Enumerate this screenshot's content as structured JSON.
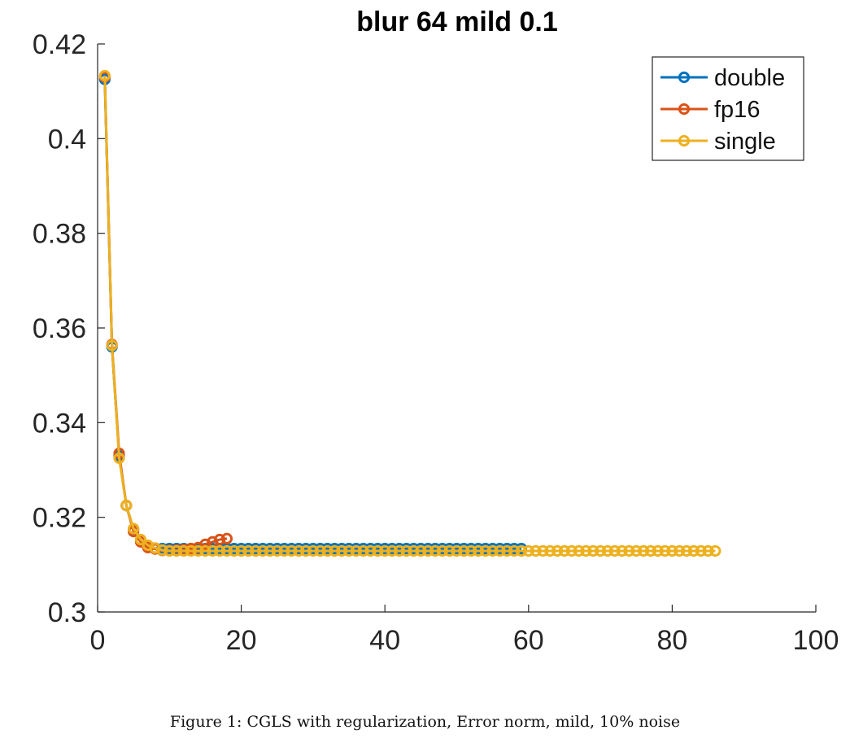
{
  "caption": "Figure 1: CGLS with regularization, Error norm, mild, 10% noise",
  "chart_data": {
    "type": "line",
    "title": "blur 64 mild 0.1",
    "xlabel": "",
    "ylabel": "",
    "xlim": [
      0,
      100
    ],
    "ylim": [
      0.3,
      0.42
    ],
    "xticks": [
      0,
      20,
      40,
      60,
      80,
      100
    ],
    "yticks": [
      0.3,
      0.32,
      0.34,
      0.36,
      0.38,
      0.4,
      0.42
    ],
    "ytick_labels": [
      "0.3",
      "0.32",
      "0.34",
      "0.36",
      "0.38",
      "0.4",
      "0.42"
    ],
    "grid": false,
    "legend_position": "top-right",
    "marker": "circle",
    "series": [
      {
        "name": "double",
        "color": "#0072BD",
        "x_start": 1,
        "values": [
          0.4125,
          0.356,
          0.333,
          0.3225,
          0.3175,
          0.315,
          0.314,
          0.3135,
          0.3134,
          0.3134,
          0.3134,
          0.3134,
          0.3134,
          0.3134,
          0.3134,
          0.3134,
          0.3134,
          0.3134,
          0.3134,
          0.3134,
          0.3134,
          0.3134,
          0.3134,
          0.3134,
          0.3134,
          0.3134,
          0.3134,
          0.3134,
          0.3134,
          0.3134,
          0.3134,
          0.3134,
          0.3134,
          0.3134,
          0.3134,
          0.3134,
          0.3134,
          0.3134,
          0.3134,
          0.3134,
          0.3134,
          0.3134,
          0.3134,
          0.3134,
          0.3134,
          0.3134,
          0.3134,
          0.3134,
          0.3134,
          0.3134,
          0.3134,
          0.3134,
          0.3134,
          0.3134,
          0.3134,
          0.3134,
          0.3134,
          0.3134,
          0.3134
        ]
      },
      {
        "name": "fp16",
        "color": "#D95319",
        "x_start": 1,
        "values": [
          0.413,
          0.3565,
          0.3335,
          0.3225,
          0.317,
          0.3148,
          0.3136,
          0.3133,
          0.313,
          0.313,
          0.3131,
          0.3132,
          0.3134,
          0.3136,
          0.3143,
          0.3148,
          0.3153,
          0.3155
        ]
      },
      {
        "name": "single",
        "color": "#EDB120",
        "x_start": 1,
        "values": [
          0.4133,
          0.3563,
          0.3325,
          0.3225,
          0.3176,
          0.3153,
          0.3141,
          0.3135,
          0.3131,
          0.3129,
          0.3129,
          0.3129,
          0.3129,
          0.3129,
          0.3129,
          0.3129,
          0.3129,
          0.3129,
          0.3129,
          0.3129,
          0.3129,
          0.3129,
          0.3129,
          0.3129,
          0.3129,
          0.3129,
          0.3129,
          0.3129,
          0.3129,
          0.3129,
          0.3129,
          0.3129,
          0.3129,
          0.3129,
          0.3129,
          0.3129,
          0.3129,
          0.3129,
          0.3129,
          0.3129,
          0.3129,
          0.3129,
          0.3129,
          0.3129,
          0.3129,
          0.3129,
          0.3129,
          0.3129,
          0.3129,
          0.3129,
          0.3129,
          0.3129,
          0.3129,
          0.3129,
          0.3129,
          0.3129,
          0.3129,
          0.3129,
          0.3129,
          0.3129,
          0.3129,
          0.3129,
          0.3129,
          0.3129,
          0.3129,
          0.3129,
          0.3129,
          0.3129,
          0.3129,
          0.3129,
          0.3129,
          0.3129,
          0.3129,
          0.3129,
          0.3129,
          0.3129,
          0.3129,
          0.3129,
          0.3129,
          0.3129,
          0.3129,
          0.3129,
          0.3129,
          0.3129,
          0.3129,
          0.3129
        ]
      }
    ]
  }
}
